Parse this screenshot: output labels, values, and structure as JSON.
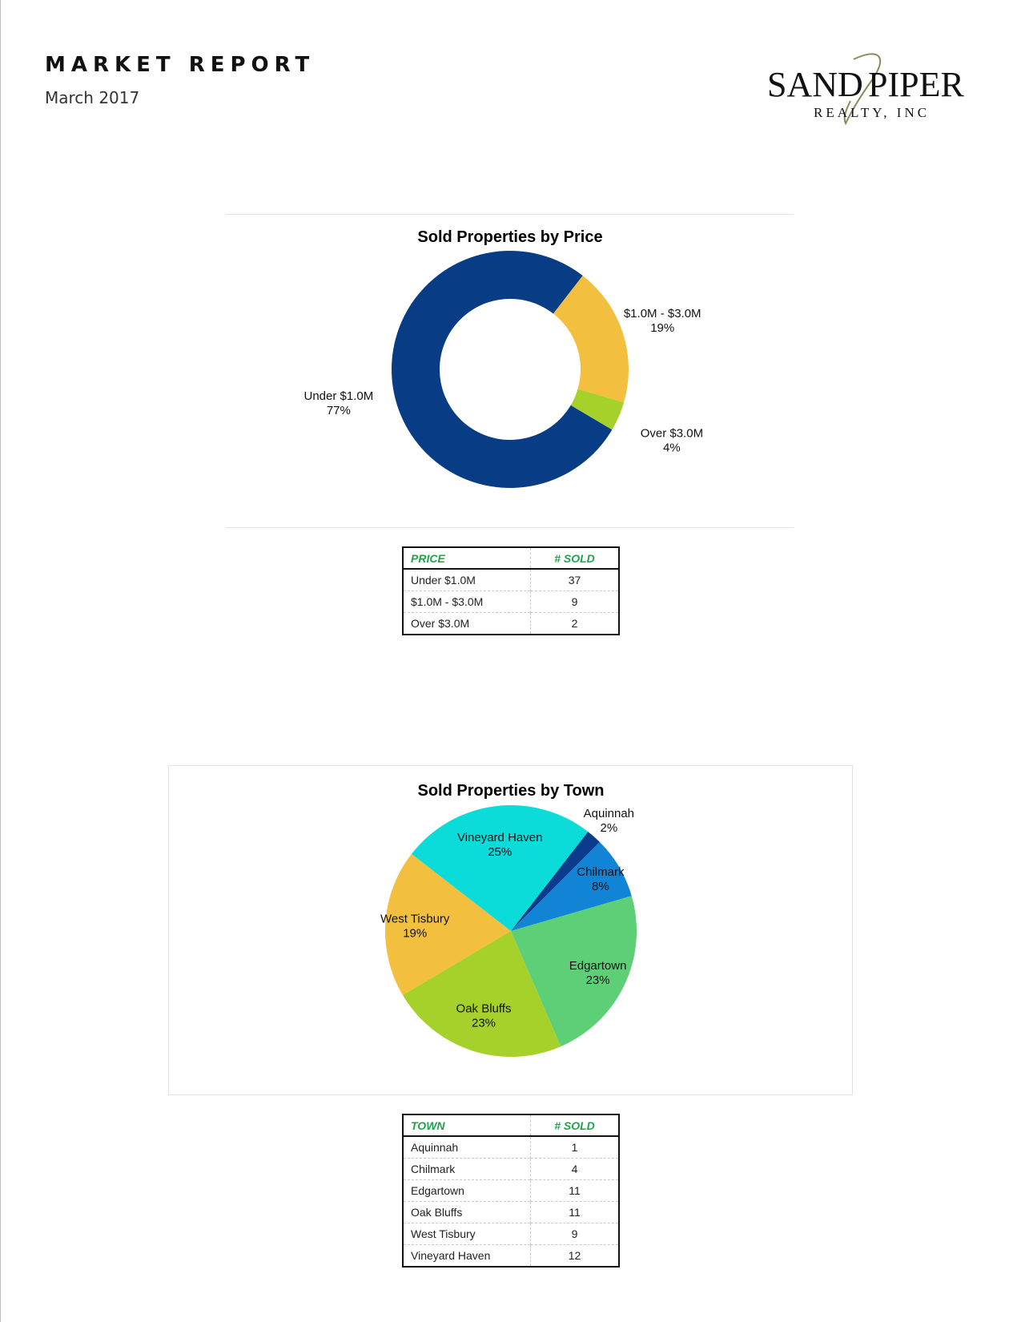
{
  "header": {
    "title": "MARKET REPORT",
    "date": "March 2017"
  },
  "logo": {
    "line1_left": "SAND",
    "line1_right": "PIPER",
    "line2": "REALTY, INC",
    "color": "#111111",
    "accent": "#8a8a5a"
  },
  "chart_data": [
    {
      "type": "pie",
      "style": "donut",
      "title": "Sold Properties by Price",
      "categories": [
        "Under $1.0M",
        "$1.0M - $3.0M",
        "Over $3.0M"
      ],
      "values": [
        77,
        19,
        4
      ],
      "labels": [
        "77%",
        "19%",
        "4%"
      ],
      "colors": [
        "#083d85",
        "#f2bf3f",
        "#a5d12a"
      ]
    },
    {
      "type": "pie",
      "title": "Sold Properties by Town",
      "categories": [
        "Aquinnah",
        "Chilmark",
        "Edgartown",
        "Oak Bluffs",
        "West Tisbury",
        "Vineyard Haven"
      ],
      "values": [
        2,
        8,
        23,
        23,
        19,
        25
      ],
      "labels": [
        "2%",
        "8%",
        "23%",
        "23%",
        "19%",
        "25%"
      ],
      "colors": [
        "#0a3b8c",
        "#1184d6",
        "#5ccf77",
        "#a5d12a",
        "#f2bf3f",
        "#0bdcd9"
      ]
    }
  ],
  "price_table": {
    "headers": [
      "PRICE",
      "# SOLD"
    ],
    "rows": [
      [
        "Under $1.0M",
        "37"
      ],
      [
        "$1.0M - $3.0M",
        "9"
      ],
      [
        "Over $3.0M",
        "2"
      ]
    ]
  },
  "town_table": {
    "headers": [
      "TOWN",
      "# SOLD"
    ],
    "rows": [
      [
        "Aquinnah",
        "1"
      ],
      [
        "Chilmark",
        "4"
      ],
      [
        "Edgartown",
        "11"
      ],
      [
        "Oak Bluffs",
        "11"
      ],
      [
        "West Tisbury",
        "9"
      ],
      [
        "Vineyard Haven",
        "12"
      ]
    ]
  }
}
